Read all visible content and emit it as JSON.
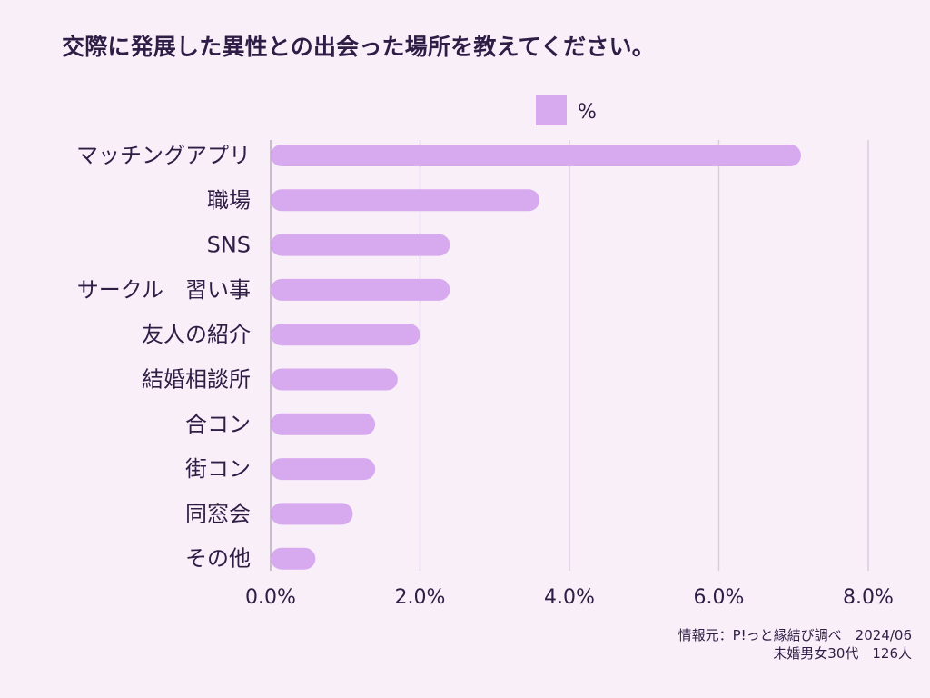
{
  "chart_data": {
    "type": "bar",
    "orientation": "horizontal",
    "title": "交際に発展した異性との出会った場所を教えてください。",
    "categories": [
      "マッチングアプリ",
      "職場",
      "SNS",
      "サークル　習い事",
      "友人の紹介",
      "結婚相談所",
      "合コン",
      "街コン",
      "同窓会",
      "その他"
    ],
    "series": [
      {
        "name": "%",
        "values": [
          7.1,
          3.6,
          2.4,
          2.4,
          2.0,
          1.7,
          1.4,
          1.4,
          1.1,
          0.6
        ]
      }
    ],
    "xlim": [
      0,
      8
    ],
    "x_ticks": [
      0,
      2,
      4,
      6,
      8
    ],
    "x_tick_labels": [
      "0.0%",
      "2.0%",
      "4.0%",
      "6.0%",
      "8.0%"
    ],
    "grid": true,
    "legend": "top-center",
    "colors": {
      "bar": "#d7a9ee",
      "background": "#f8eff9",
      "grid": "#d8cadf",
      "text": "#2f1d45"
    },
    "source_lines": [
      "情報元：P!っと縁結び調べ　2024/06",
      "未婚男女30代　126人"
    ]
  }
}
